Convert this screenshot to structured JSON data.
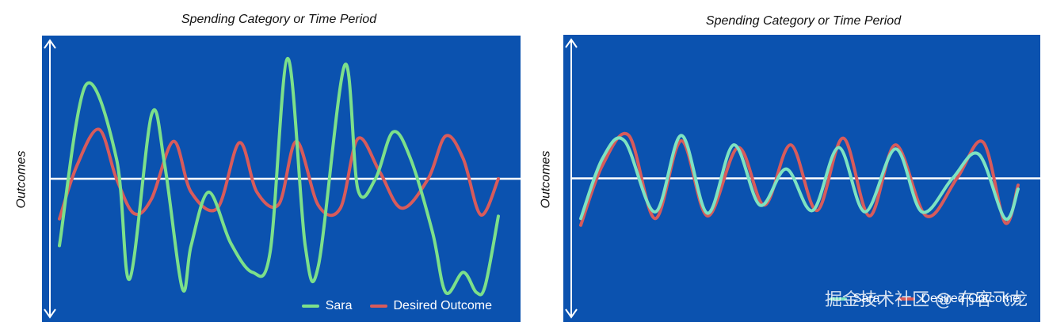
{
  "chart_data": [
    {
      "type": "line",
      "title": "Spending Category or Time Period",
      "xlabel": "",
      "ylabel": "Outcomes",
      "xlim": [
        0,
        100
      ],
      "ylim": [
        -100,
        100
      ],
      "zero_line": true,
      "background": "#0B52AF",
      "legend": "bottom-right",
      "series": [
        {
          "name": "Sara",
          "color": "#7CE08A",
          "x": [
            0,
            6,
            13,
            16,
            21,
            24,
            28,
            30,
            34,
            39,
            44,
            48,
            52,
            56,
            59,
            65,
            68,
            72,
            76,
            80,
            85,
            88,
            92,
            95,
            97,
            100
          ],
          "y": [
            -50,
            70,
            15,
            -75,
            48,
            10,
            -82,
            -50,
            -10,
            -48,
            -70,
            -55,
            90,
            -50,
            -65,
            85,
            -8,
            0,
            35,
            15,
            -40,
            -85,
            -70,
            -85,
            -80,
            -28
          ]
        },
        {
          "name": "Desired Outcome",
          "color": "#D85B5B",
          "x": [
            0,
            4,
            9,
            13,
            17,
            21,
            26,
            30,
            36,
            41,
            45,
            50,
            54,
            59,
            64,
            68,
            73,
            78,
            84,
            88,
            92,
            96,
            100
          ],
          "y": [
            -30,
            10,
            37,
            0,
            -26,
            -15,
            28,
            -10,
            -22,
            27,
            -10,
            -19,
            28,
            -20,
            -22,
            30,
            5,
            -22,
            0,
            32,
            15,
            -27,
            0
          ]
        }
      ]
    },
    {
      "type": "line",
      "title": "Spending Category or Time Period",
      "xlabel": "",
      "ylabel": "Outcomes",
      "xlim": [
        0,
        100
      ],
      "ylim": [
        -100,
        100
      ],
      "zero_line": true,
      "background": "#0B52AF",
      "legend": "bottom-right",
      "series": [
        {
          "name": "Sara",
          "color": "#7DE3C2",
          "x": [
            0,
            5,
            10,
            17,
            23,
            29,
            35,
            41,
            47,
            53,
            59,
            65,
            72,
            78,
            85,
            91,
            97,
            100
          ],
          "y": [
            -30,
            15,
            28,
            -25,
            32,
            -26,
            25,
            -20,
            7,
            -24,
            23,
            -25,
            22,
            -25,
            0,
            18,
            -30,
            -8
          ]
        },
        {
          "name": "Desired Outcome",
          "color": "#D85B5B",
          "x": [
            0,
            5,
            11,
            17,
            23,
            29,
            36,
            42,
            48,
            54,
            60,
            66,
            72,
            79,
            86,
            92,
            97,
            100
          ],
          "y": [
            -35,
            10,
            32,
            -30,
            28,
            -28,
            23,
            -20,
            25,
            -24,
            30,
            -28,
            25,
            -28,
            0,
            27,
            -33,
            -5
          ]
        }
      ]
    }
  ],
  "watermark": "掘金技术社区 @ 布客飞龙"
}
